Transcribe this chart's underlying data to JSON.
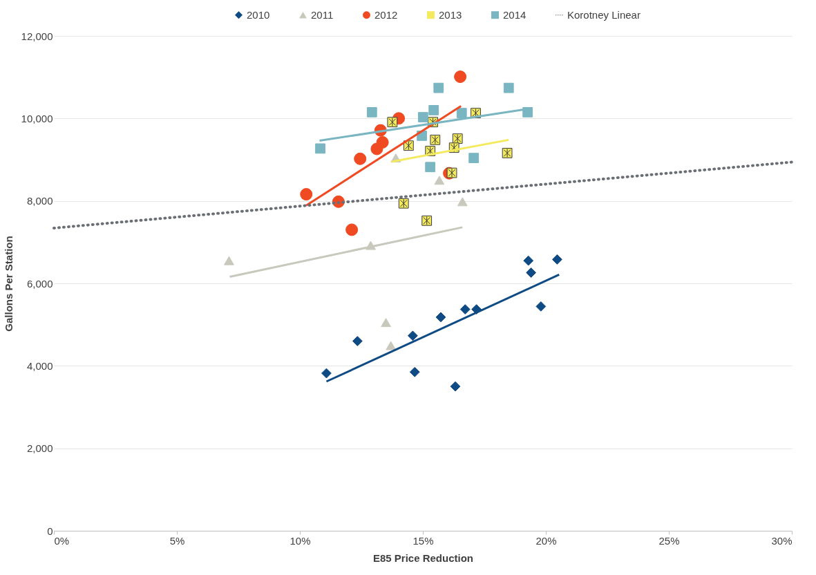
{
  "chart_data": {
    "type": "scatter",
    "xlabel": "E85 Price Reduction",
    "ylabel": "Gallons Per Station",
    "xlim": [
      0,
      30
    ],
    "xticks": [
      {
        "value": 0,
        "label": "0%"
      },
      {
        "value": 5,
        "label": "5%"
      },
      {
        "value": 10,
        "label": "10%"
      },
      {
        "value": 15,
        "label": "15%"
      },
      {
        "value": 20,
        "label": "20%"
      },
      {
        "value": 25,
        "label": "25%"
      },
      {
        "value": 30,
        "label": "30%"
      }
    ],
    "ylim": [
      0,
      12000
    ],
    "yticks": [
      {
        "value": 0,
        "label": "0"
      },
      {
        "value": 2000,
        "label": "2,000"
      },
      {
        "value": 4000,
        "label": "4,000"
      },
      {
        "value": 6000,
        "label": "6,000"
      },
      {
        "value": 8000,
        "label": "8,000"
      },
      {
        "value": 10000,
        "label": "10,000"
      },
      {
        "value": 12000,
        "label": "12,000"
      }
    ],
    "grid": "y",
    "legend": "top",
    "series": [
      {
        "name": "2010",
        "marker": "diamond",
        "color": "#0e4a84",
        "x": [
          11.08,
          12.34,
          14.59,
          14.67,
          15.73,
          16.32,
          16.72,
          17.18,
          19.29,
          19.4,
          19.8,
          20.46
        ],
        "values": [
          3820,
          4600,
          4730,
          3850,
          5180,
          3500,
          5370,
          5370,
          6550,
          6260,
          5440,
          6580
        ]
      },
      {
        "name": "2011",
        "marker": "triangle",
        "color": "#c8c8bc",
        "x": [
          7.12,
          12.88,
          13.5,
          13.7,
          13.9,
          15.67,
          16.61
        ],
        "values": [
          6550,
          6920,
          5050,
          4490,
          9040,
          8500,
          7980
        ]
      },
      {
        "name": "2012",
        "marker": "circle",
        "color": "#ef4a22",
        "x": [
          10.26,
          11.57,
          12.11,
          12.45,
          13.13,
          13.36,
          13.28,
          14.02,
          16.07,
          16.52
        ],
        "values": [
          8160,
          7980,
          7300,
          9020,
          9260,
          9420,
          9710,
          10000,
          8670,
          11010
        ]
      },
      {
        "name": "2013",
        "marker": "cross",
        "color": "#f3ea5d",
        "x": [
          13.76,
          14.42,
          15.5,
          15.3,
          16.41,
          16.27,
          17.15,
          18.43,
          16.18,
          14.22,
          15.16,
          15.41
        ],
        "values": [
          9910,
          9340,
          9480,
          9210,
          9510,
          9290,
          10130,
          9160,
          8680,
          7940,
          7520,
          9910
        ]
      },
      {
        "name": "2014",
        "marker": "square",
        "color": "#7ab6c1",
        "x": [
          10.83,
          12.93,
          15.64,
          15.44,
          15.01,
          14.96,
          15.3,
          16.58,
          17.07,
          18.49,
          19.26
        ],
        "values": [
          9270,
          10150,
          10740,
          10200,
          10030,
          9580,
          8820,
          10130,
          9040,
          10740,
          10150
        ]
      },
      {
        "type": "line",
        "line_style": "solid",
        "color": "#0e4a84",
        "x": [
          11.08,
          20.54
        ],
        "values": [
          3620,
          6210
        ]
      },
      {
        "type": "line",
        "line_style": "solid",
        "color": "#c8c8bc",
        "x": [
          7.15,
          16.61
        ],
        "values": [
          6160,
          7360
        ]
      },
      {
        "type": "line",
        "line_style": "solid",
        "color": "#ef4a22",
        "x": [
          10.26,
          16.55
        ],
        "values": [
          7890,
          10300
        ]
      },
      {
        "type": "line",
        "line_style": "solid",
        "color": "#f3ea5d",
        "x": [
          13.73,
          18.49
        ],
        "values": [
          8950,
          9480
        ]
      },
      {
        "type": "line",
        "line_style": "solid",
        "color": "#7ab6c1",
        "x": [
          10.8,
          19.15
        ],
        "values": [
          9460,
          10220
        ]
      },
      {
        "name": "Korotney Linear",
        "type": "line",
        "line_style": "dotted",
        "color": "#6b6f75",
        "x": [
          0,
          30
        ],
        "values": [
          7340,
          8940
        ]
      }
    ]
  }
}
